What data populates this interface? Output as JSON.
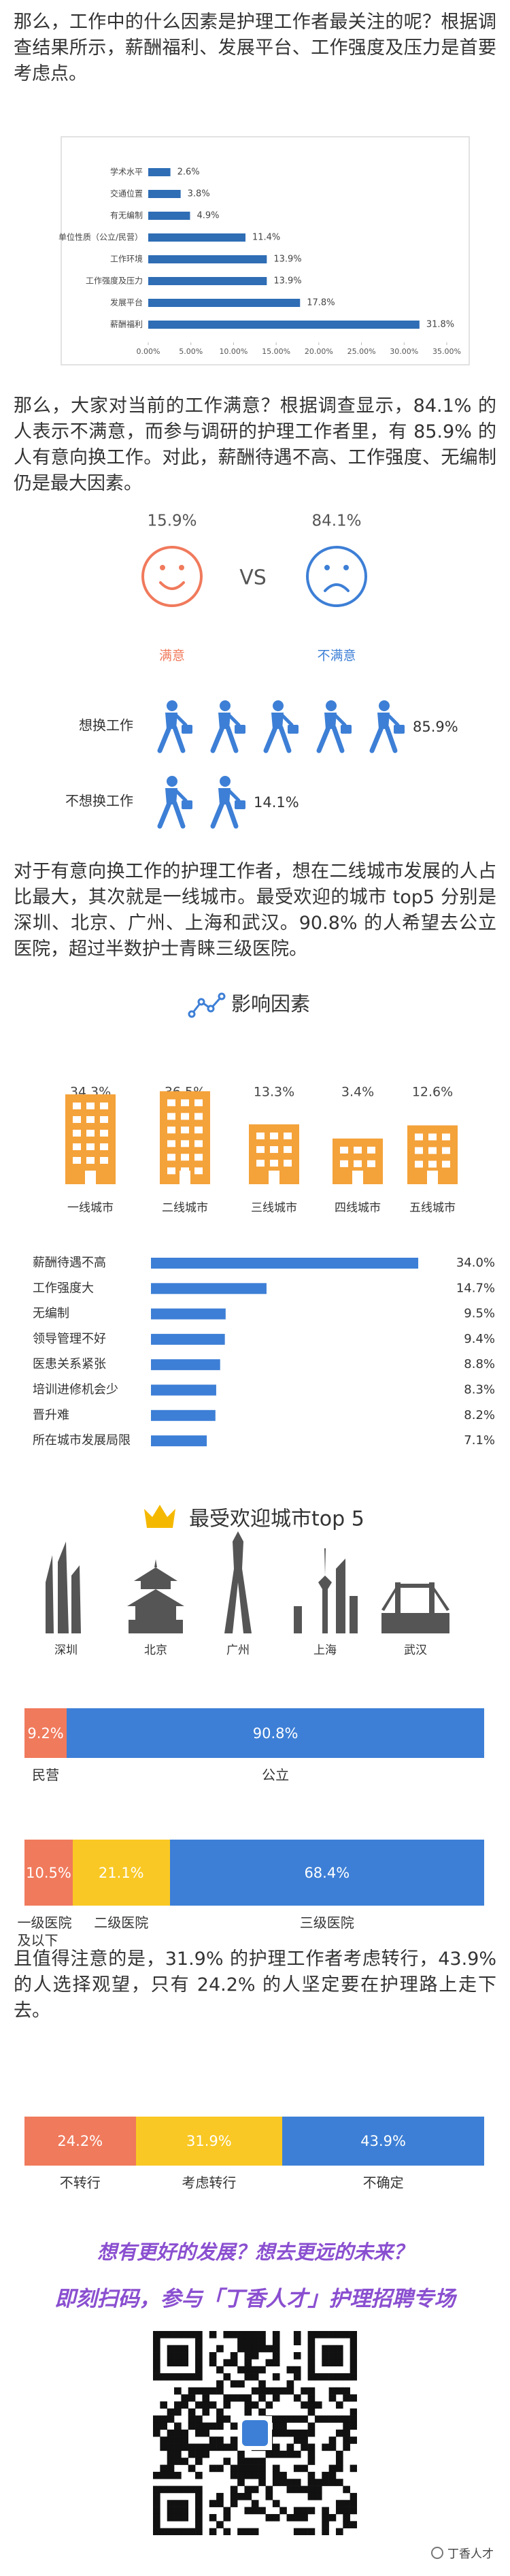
{
  "paragraphs": [
    "那么，工作中的什么因素是护理工作者最关注的呢？根据调查结果所示，薪酬福利、发展平台、工作强度及压力是首要考虑点。",
    "那么，大家对当前的工作满意？根据调查显示，84.1% 的人表示不满意，而参与调研的护理工作者里，有 85.9% 的人有意向换工作。对此，薪酬待遇不高、工作强度、无编制仍是最大因素。",
    "对于有意向换工作的护理工作者，想在二线城市发展的人占比最大，其次就是一线城市。最受欢迎的城市 top5 分别是深圳、北京、广州、上海和武汉。90.8% 的人希望去公立医院，超过半数护士青睐三级医院。",
    "且值得注意的是，31.9% 的护理工作者考虑转行，43.9% 的人选择观望，只有 24.2% 的人坚定要在护理路上走下去。"
  ],
  "chart_data": [
    {
      "type": "hbar",
      "categories": [
        "学术水平",
        "交通位置",
        "有无编制",
        "单位性质（公立/民营）",
        "工作环境",
        "工作强度及压力",
        "发展平台",
        "薪酬福利"
      ],
      "values": [
        2.6,
        3.8,
        4.9,
        11.4,
        13.9,
        13.9,
        17.8,
        31.8
      ],
      "value_labels": [
        "2.6%",
        "3.8%",
        "4.9%",
        "11.4%",
        "13.9%",
        "13.9%",
        "17.8%",
        "31.8%"
      ],
      "color": "#2f6db5",
      "xlim": [
        0,
        35
      ],
      "xticks": [
        {
          "value": 0,
          "label": "0.00%"
        },
        {
          "value": 5,
          "label": "5.00%"
        },
        {
          "value": 10,
          "label": "10.00%"
        },
        {
          "value": 15,
          "label": "15.00%"
        },
        {
          "value": 20,
          "label": "20.00%"
        },
        {
          "value": 25,
          "label": "25.00%"
        },
        {
          "value": 30,
          "label": "30.00%"
        },
        {
          "value": 35,
          "label": "35.00%"
        }
      ]
    },
    {
      "type": "faces",
      "categories": [
        "满意",
        "不满意"
      ],
      "values": [
        15.9,
        84.1
      ],
      "value_labels": [
        "15.9%",
        "84.1%"
      ],
      "colors": [
        "#f07a5c",
        "#3d7fd6"
      ],
      "annotation": "VS"
    },
    {
      "type": "pictogram",
      "categories": [
        "想换工作",
        "不想换工作"
      ],
      "values": [
        85.9,
        14.1
      ],
      "value_labels": [
        "85.9%",
        "14.1%"
      ],
      "color": "#3d7fd6"
    },
    {
      "type": "buildings",
      "title": "影响因素",
      "categories": [
        "一线城市",
        "二线城市",
        "三线城市",
        "四线城市",
        "五线城市"
      ],
      "values": [
        34.3,
        36.5,
        13.3,
        3.4,
        12.6
      ],
      "value_labels": [
        "34.3%",
        "36.5%",
        "13.3%",
        "3.4%",
        "12.6%"
      ],
      "color": "#f4a23a"
    },
    {
      "type": "barlist",
      "categories": [
        "薪酬待遇不高",
        "工作强度大",
        "无编制",
        "领导管理不好",
        "医患关系紧张",
        "培训进修机会少",
        "晋升难",
        "所在城市发展局限"
      ],
      "values": [
        34.0,
        14.7,
        9.5,
        9.4,
        8.8,
        8.3,
        8.2,
        7.1
      ],
      "value_labels": [
        "34.0%",
        "14.7%",
        "9.5%",
        "9.4%",
        "8.8%",
        "8.3%",
        "8.2%",
        "7.1%"
      ],
      "color": "#3d7fd6"
    },
    {
      "type": "skyline",
      "title": "最受欢迎城市top 5",
      "categories": [
        "深圳",
        "北京",
        "广州",
        "上海",
        "武汉"
      ]
    },
    {
      "type": "stacked",
      "series": [
        {
          "name": "民营",
          "color": "#f07a5c",
          "values": [
            9.2
          ],
          "value_labels": [
            "9.2%"
          ]
        },
        {
          "name": "公立",
          "color": "#3d7fd6",
          "values": [
            90.8
          ],
          "value_labels": [
            "90.8%"
          ]
        }
      ]
    },
    {
      "type": "stacked",
      "series": [
        {
          "name": "一级医院及以下",
          "color": "#f07a5c",
          "values": [
            10.5
          ],
          "value_labels": [
            "10.5%"
          ]
        },
        {
          "name": "二级医院",
          "color": "#f9c824",
          "values": [
            21.1
          ],
          "value_labels": [
            "21.1%"
          ]
        },
        {
          "name": "三级医院",
          "color": "#3d7fd6",
          "values": [
            68.4
          ],
          "value_labels": [
            "68.4%"
          ]
        }
      ]
    },
    {
      "type": "stacked",
      "series": [
        {
          "name": "不转行",
          "color": "#f07a5c",
          "values": [
            24.2
          ],
          "value_labels": [
            "24.2%"
          ]
        },
        {
          "name": "考虑转行",
          "color": "#f9c824",
          "values": [
            31.9
          ],
          "value_labels": [
            "31.9%"
          ]
        },
        {
          "name": "不确定",
          "color": "#3d7fd6",
          "values": [
            43.9
          ],
          "value_labels": [
            "43.9%"
          ]
        }
      ]
    }
  ],
  "promo": [
    "想有更好的发展？想去更远的未来？",
    "即刻扫码，参与「丁香人才」护理招聘专场"
  ],
  "watermark": "丁香人才"
}
